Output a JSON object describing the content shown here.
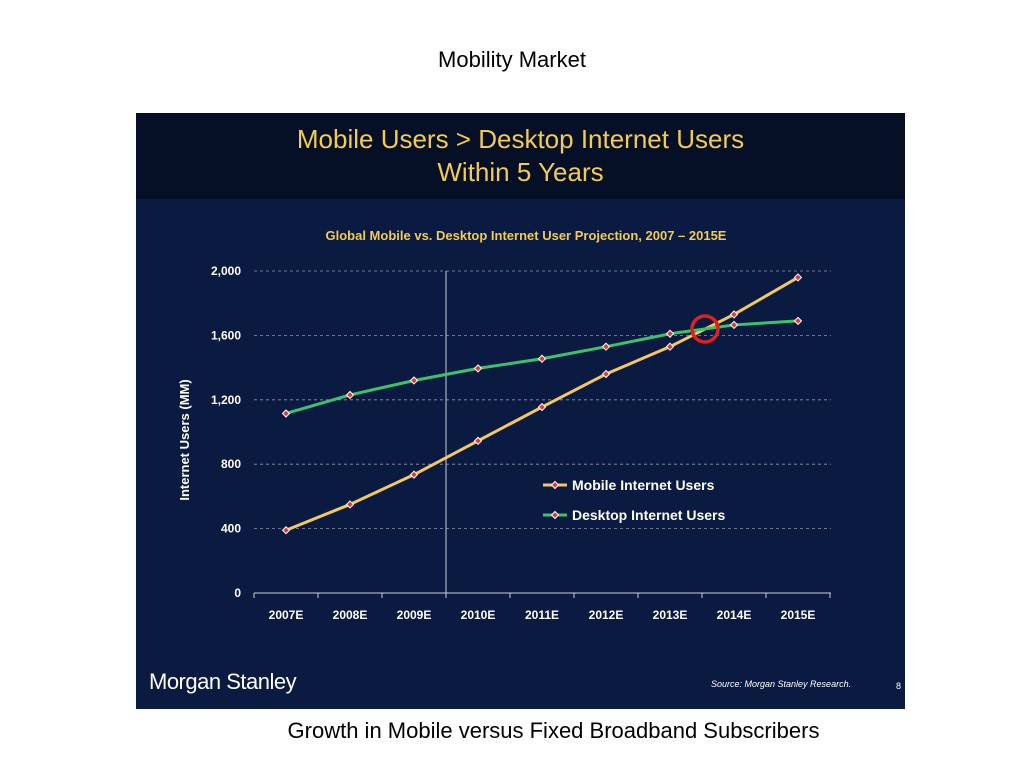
{
  "page": {
    "title": "Mobility Market",
    "caption": "Growth in Mobile versus Fixed Broadband Subscribers"
  },
  "slide": {
    "headline_line1": "Mobile Users > Desktop Internet Users",
    "headline_line2": "Within 5 Years",
    "logo": "Morgan Stanley",
    "source": "Source: Morgan Stanley Research.",
    "page_number": "8"
  },
  "colors": {
    "slide_background": "#0b1a40",
    "header_background": "#050f26",
    "headline": "#f3cb4f",
    "mobile_series": "#f3c862",
    "desktop_series": "#3cc36a",
    "crossover_circle": "#e0201b"
  },
  "chart_data": {
    "type": "line",
    "title": "Global Mobile vs. Desktop Internet User Projection, 2007 – 2015E",
    "ylabel": "Internet Users (MM)",
    "xlabel": "",
    "categories": [
      "2007E",
      "2008E",
      "2009E",
      "2010E",
      "2011E",
      "2012E",
      "2013E",
      "2014E",
      "2015E"
    ],
    "y_ticks": [
      "0",
      "400",
      "800",
      "1,200",
      "1,600",
      "2,000"
    ],
    "ylim": [
      0,
      2000
    ],
    "grid": "dashed horizontal",
    "legend_position": "center-right",
    "divider_between": [
      "2009E",
      "2010E"
    ],
    "crossover_marker": {
      "x": "2013E–2014E",
      "y": 1640
    },
    "series": [
      {
        "name": "Mobile Internet Users",
        "values": [
          390,
          550,
          735,
          945,
          1155,
          1360,
          1530,
          1730,
          1960
        ]
      },
      {
        "name": "Desktop Internet Users",
        "values": [
          1115,
          1230,
          1320,
          1395,
          1455,
          1530,
          1610,
          1665,
          1690
        ]
      }
    ]
  }
}
